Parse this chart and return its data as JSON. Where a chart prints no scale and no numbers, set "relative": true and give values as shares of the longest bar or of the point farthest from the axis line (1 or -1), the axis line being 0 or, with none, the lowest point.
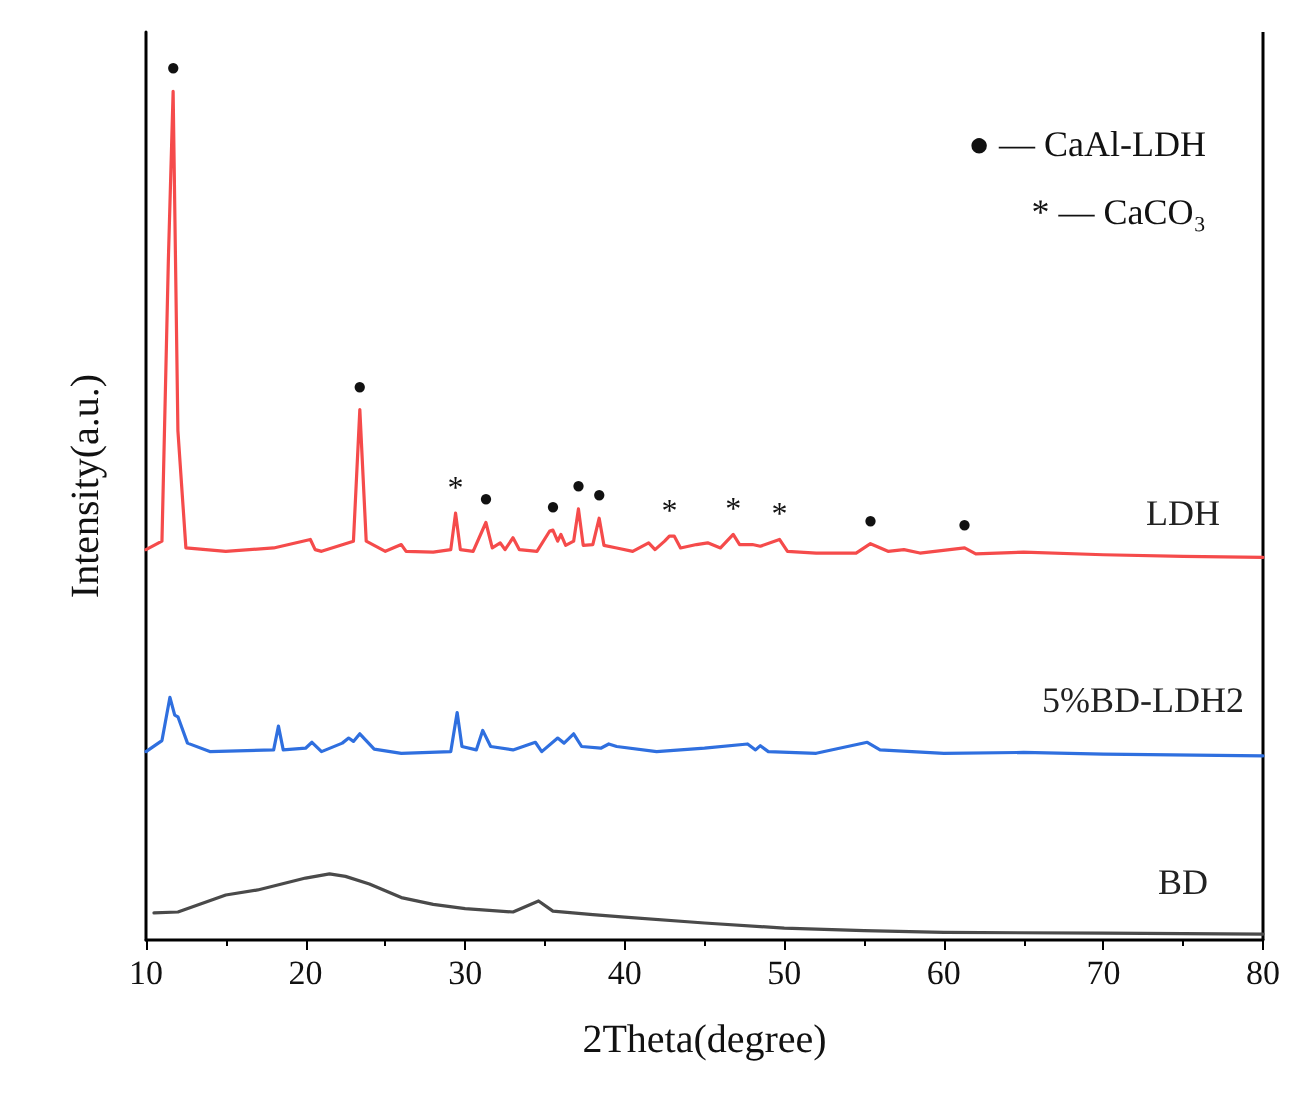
{
  "chart_data": {
    "type": "line",
    "relative": true,
    "xlabel": "2Theta(degree)",
    "ylabel": "Intensity(a.u.)",
    "xlim": [
      10,
      80
    ],
    "xticks": [
      10,
      20,
      30,
      40,
      50,
      60,
      70,
      80
    ],
    "grid": false,
    "legend": false,
    "marker": "none",
    "line_style": "solid",
    "tick_labels": "x",
    "series": [
      {
        "name": "LDH",
        "color": "#f54b4b",
        "x": [
          10,
          11.0,
          11.4,
          11.7,
          12.0,
          12.5,
          15,
          18,
          20.3,
          20.6,
          21,
          23.0,
          23.4,
          23.8,
          25,
          26,
          26.3,
          28,
          29.1,
          29.4,
          29.7,
          30.5,
          31.3,
          31.7,
          32.2,
          32.5,
          33.0,
          33.4,
          34.5,
          35.3,
          35.5,
          35.8,
          36.0,
          36.3,
          36.8,
          37.1,
          37.4,
          38.0,
          38.4,
          38.7,
          39.5,
          40.5,
          41.5,
          41.9,
          42.5,
          42.8,
          43.1,
          43.5,
          44.5,
          45.2,
          46,
          46.8,
          47.2,
          48,
          48.5,
          49.7,
          50.2,
          52,
          54.5,
          55.4,
          56.5,
          57.5,
          58.5,
          61.3,
          62,
          65,
          70,
          75,
          80
        ],
        "values": [
          0.46,
          0.47,
          0.8,
          1.0,
          0.6,
          0.462,
          0.458,
          0.462,
          0.472,
          0.46,
          0.458,
          0.47,
          0.625,
          0.47,
          0.458,
          0.466,
          0.458,
          0.457,
          0.46,
          0.503,
          0.46,
          0.458,
          0.492,
          0.462,
          0.468,
          0.46,
          0.474,
          0.46,
          0.458,
          0.482,
          0.483,
          0.47,
          0.478,
          0.465,
          0.47,
          0.508,
          0.465,
          0.466,
          0.497,
          0.465,
          0.462,
          0.458,
          0.468,
          0.46,
          0.47,
          0.476,
          0.476,
          0.462,
          0.466,
          0.468,
          0.462,
          0.478,
          0.466,
          0.466,
          0.464,
          0.472,
          0.458,
          0.456,
          0.456,
          0.467,
          0.458,
          0.46,
          0.456,
          0.462,
          0.455,
          0.457,
          0.454,
          0.452,
          0.451
        ]
      },
      {
        "name": "5%BD-LDH2",
        "color": "#2f6fdf",
        "x": [
          10,
          11.0,
          11.5,
          11.8,
          12.0,
          12.6,
          14,
          18.0,
          18.3,
          18.6,
          20.0,
          20.4,
          21,
          22.3,
          22.7,
          23.0,
          23.4,
          24.3,
          26,
          29.1,
          29.5,
          29.8,
          30.7,
          31.1,
          31.6,
          33.0,
          34.4,
          34.8,
          35.8,
          36.2,
          36.8,
          37.3,
          38.5,
          39.0,
          39.5,
          42,
          45,
          47.7,
          48.2,
          48.5,
          49,
          52,
          55.2,
          56,
          60,
          65,
          70,
          80
        ],
        "values": [
          0.222,
          0.235,
          0.286,
          0.265,
          0.263,
          0.232,
          0.222,
          0.224,
          0.252,
          0.224,
          0.226,
          0.233,
          0.222,
          0.232,
          0.238,
          0.234,
          0.243,
          0.225,
          0.22,
          0.222,
          0.268,
          0.228,
          0.224,
          0.247,
          0.228,
          0.224,
          0.233,
          0.222,
          0.238,
          0.232,
          0.243,
          0.228,
          0.226,
          0.231,
          0.228,
          0.222,
          0.226,
          0.231,
          0.224,
          0.229,
          0.222,
          0.22,
          0.233,
          0.224,
          0.22,
          0.221,
          0.219,
          0.217
        ]
      },
      {
        "name": "BD",
        "color": "#4a4a4a",
        "x": [
          10.5,
          12,
          15,
          17,
          20,
          21.5,
          22.5,
          24,
          26,
          28,
          30,
          33,
          34.6,
          35.5,
          38,
          40,
          45,
          50,
          55,
          60,
          70,
          80
        ],
        "values": [
          0.032,
          0.033,
          0.053,
          0.059,
          0.073,
          0.078,
          0.075,
          0.066,
          0.05,
          0.042,
          0.037,
          0.033,
          0.046,
          0.034,
          0.03,
          0.027,
          0.02,
          0.014,
          0.011,
          0.009,
          0.008,
          0.007
        ]
      }
    ],
    "annotations": [
      {
        "text": "●",
        "x": 11.7,
        "y": 1.0
      },
      {
        "text": "●",
        "x": 23.4,
        "y": 0.625
      },
      {
        "text": "*",
        "x": 29.4,
        "y": 0.503
      },
      {
        "text": "●",
        "x": 31.3,
        "y": 0.492
      },
      {
        "text": "●",
        "x": 35.5,
        "y": 0.483
      },
      {
        "text": "●",
        "x": 37.1,
        "y": 0.508
      },
      {
        "text": "●",
        "x": 38.4,
        "y": 0.497
      },
      {
        "text": "*",
        "x": 42.8,
        "y": 0.476
      },
      {
        "text": "*",
        "x": 46.8,
        "y": 0.478
      },
      {
        "text": "*",
        "x": 49.7,
        "y": 0.472
      },
      {
        "text": "●",
        "x": 55.4,
        "y": 0.467
      },
      {
        "text": "●",
        "x": 61.3,
        "y": 0.462
      },
      "● — CaAl-LDH",
      "* — CaCO₃"
    ]
  }
}
